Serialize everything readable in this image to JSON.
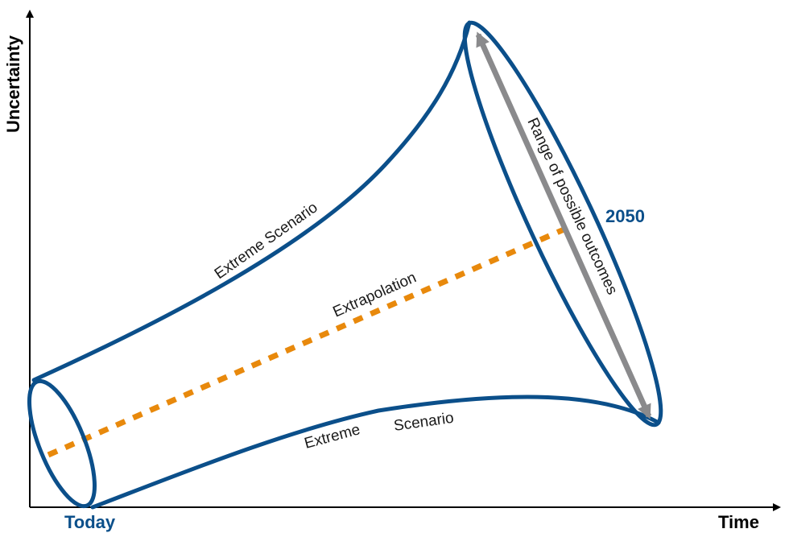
{
  "axes": {
    "y_label": "Uncertainty",
    "x_label": "Time"
  },
  "markers": {
    "start_label": "Today",
    "end_label": "2050"
  },
  "labels": {
    "upper_scenario": "Extreme Scenario",
    "lower_scenario_word1": "Extreme",
    "lower_scenario_word2": "Scenario",
    "extrapolation": "Extrapolation",
    "range": "Range of possible outcomes"
  },
  "colors": {
    "funnel": "#0b4f8a",
    "extrapolation": "#e8890c",
    "range_arrow": "#8a8a8c",
    "axes": "#000000"
  }
}
